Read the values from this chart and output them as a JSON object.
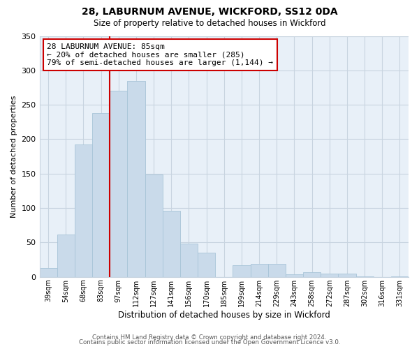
{
  "title": "28, LABURNUM AVENUE, WICKFORD, SS12 0DA",
  "subtitle": "Size of property relative to detached houses in Wickford",
  "xlabel": "Distribution of detached houses by size in Wickford",
  "ylabel": "Number of detached properties",
  "bin_labels": [
    "39sqm",
    "54sqm",
    "68sqm",
    "83sqm",
    "97sqm",
    "112sqm",
    "127sqm",
    "141sqm",
    "156sqm",
    "170sqm",
    "185sqm",
    "199sqm",
    "214sqm",
    "229sqm",
    "243sqm",
    "258sqm",
    "272sqm",
    "287sqm",
    "302sqm",
    "316sqm",
    "331sqm"
  ],
  "bar_heights": [
    13,
    62,
    192,
    238,
    270,
    285,
    149,
    96,
    48,
    35,
    0,
    17,
    19,
    19,
    4,
    7,
    5,
    5,
    1,
    0,
    1
  ],
  "bar_color": "#c9daea",
  "bar_edge_color": "#a8c4d8",
  "vline_bin_index": 3.5,
  "annotation_text": "28 LABURNUM AVENUE: 85sqm\n← 20% of detached houses are smaller (285)\n79% of semi-detached houses are larger (1,144) →",
  "annotation_box_color": "#ffffff",
  "annotation_box_edge_color": "#cc0000",
  "vline_color": "#cc0000",
  "ylim": [
    0,
    350
  ],
  "yticks": [
    0,
    50,
    100,
    150,
    200,
    250,
    300,
    350
  ],
  "footer_line1": "Contains HM Land Registry data © Crown copyright and database right 2024.",
  "footer_line2": "Contains public sector information licensed under the Open Government Licence v3.0.",
  "background_color": "#ffffff",
  "plot_bg_color": "#e8f0f8",
  "grid_color": "#c8d4e0"
}
